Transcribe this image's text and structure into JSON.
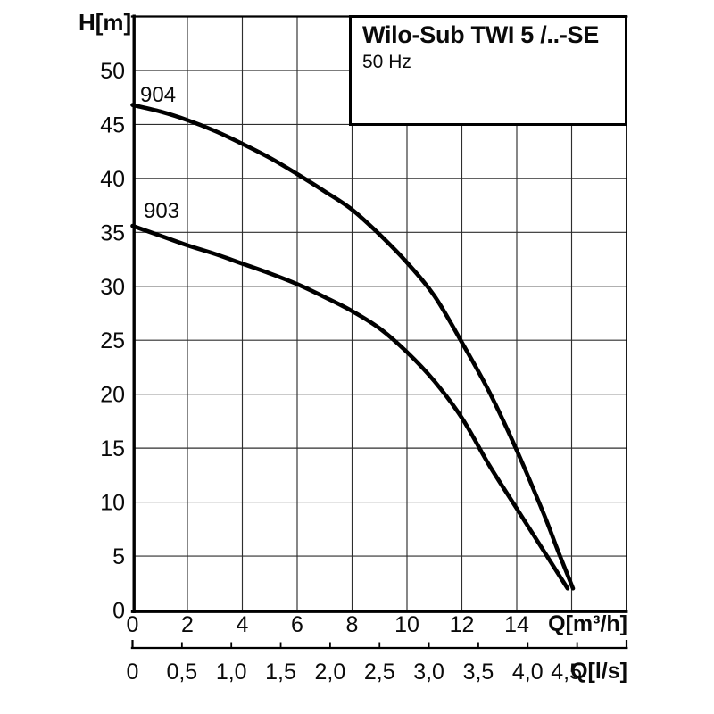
{
  "chart_data": {
    "type": "line",
    "title": "Wilo-Sub TWI 5 /..-SE",
    "subtitle": "50 Hz",
    "ylabel": "H[m]",
    "xlabel": "Q[m³/h]",
    "x2label": "Q[l/s]",
    "xlim": [
      0,
      18
    ],
    "ylim": [
      0,
      55
    ],
    "x_grid_step": 2,
    "y_grid_step": 5,
    "grid": true,
    "legend_position": "labels-at-curve-start",
    "x_ticks": [
      0,
      2,
      4,
      6,
      8,
      10,
      12,
      14
    ],
    "y_ticks": [
      0,
      5,
      10,
      15,
      20,
      25,
      30,
      35,
      40,
      45,
      50
    ],
    "x2_unit_to_x": 3.6,
    "x2_ticks": [
      {
        "v": 0,
        "label": "0"
      },
      {
        "v": 0.5,
        "label": "0,5"
      },
      {
        "v": 1,
        "label": "1,0"
      },
      {
        "v": 1.5,
        "label": "1,5"
      },
      {
        "v": 2,
        "label": "2,0"
      },
      {
        "v": 2.5,
        "label": "2,5"
      },
      {
        "v": 3,
        "label": "3,0"
      },
      {
        "v": 3.5,
        "label": "3,5"
      },
      {
        "v": 4,
        "label": "4,0"
      },
      {
        "v": 4.5,
        "label": "4,5"
      }
    ],
    "series": [
      {
        "name": "903",
        "points": [
          [
            0,
            35.6
          ],
          [
            1,
            34.7
          ],
          [
            2,
            33.8
          ],
          [
            3,
            33.0
          ],
          [
            4,
            32.1
          ],
          [
            5,
            31.2
          ],
          [
            6,
            30.2
          ],
          [
            7,
            29.0
          ],
          [
            8,
            27.7
          ],
          [
            9,
            26.1
          ],
          [
            10,
            23.9
          ],
          [
            11,
            21.2
          ],
          [
            12,
            17.8
          ],
          [
            13,
            13.4
          ],
          [
            14,
            9.4
          ],
          [
            15,
            5.4
          ],
          [
            15.85,
            2.0
          ]
        ]
      },
      {
        "name": "904",
        "points": [
          [
            0,
            46.8
          ],
          [
            1,
            46.2
          ],
          [
            2,
            45.4
          ],
          [
            3,
            44.4
          ],
          [
            4,
            43.2
          ],
          [
            5,
            41.9
          ],
          [
            6,
            40.4
          ],
          [
            7,
            38.8
          ],
          [
            8,
            37.1
          ],
          [
            9,
            34.8
          ],
          [
            10,
            32.2
          ],
          [
            11,
            29.1
          ],
          [
            12,
            24.8
          ],
          [
            13,
            20.2
          ],
          [
            14,
            14.8
          ],
          [
            15,
            8.8
          ],
          [
            15.5,
            5.5
          ],
          [
            16.05,
            2.0
          ]
        ]
      }
    ]
  }
}
